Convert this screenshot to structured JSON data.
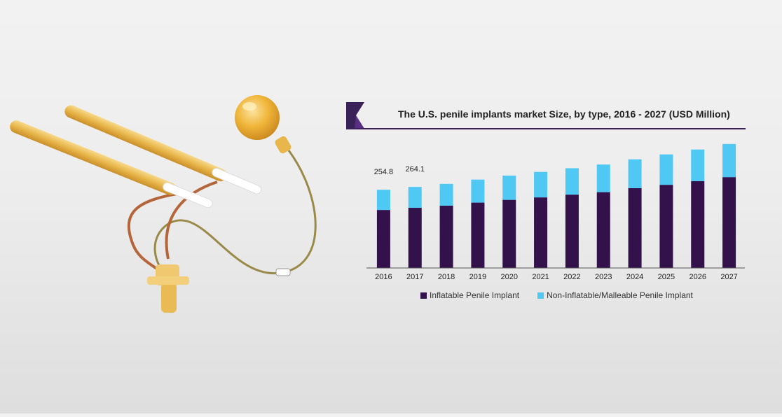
{
  "chart_data": {
    "type": "bar",
    "stacked": true,
    "title": "The U.S. penile implants market Size, by type, 2016 - 2027 (USD Million)",
    "categories": [
      "2016",
      "2017",
      "2018",
      "2019",
      "2020",
      "2021",
      "2022",
      "2023",
      "2024",
      "2025",
      "2026",
      "2027"
    ],
    "series": [
      {
        "name": "Inflatable Penile Implant",
        "color": "#33114a",
        "values": [
          189,
          196,
          203,
          213,
          222,
          230,
          239,
          247,
          260,
          271,
          283,
          296
        ]
      },
      {
        "name": "Non-Inflatable/Malleable Penile Implant",
        "color": "#4fc8f4",
        "values": [
          65.8,
          68.1,
          71,
          75,
          79,
          83,
          86,
          90,
          94,
          99,
          103,
          108
        ]
      }
    ],
    "data_labels": [
      {
        "category": "2016",
        "text": "254.8"
      },
      {
        "category": "2017",
        "text": "264.1"
      }
    ],
    "ylim": [
      0,
      440
    ],
    "legend_position": "bottom",
    "grid": false
  },
  "brand": {
    "logo_icon": "brand-k-logo-icon",
    "accent": "#3a2258"
  },
  "photo": {
    "subject": "implant-device-photo"
  }
}
